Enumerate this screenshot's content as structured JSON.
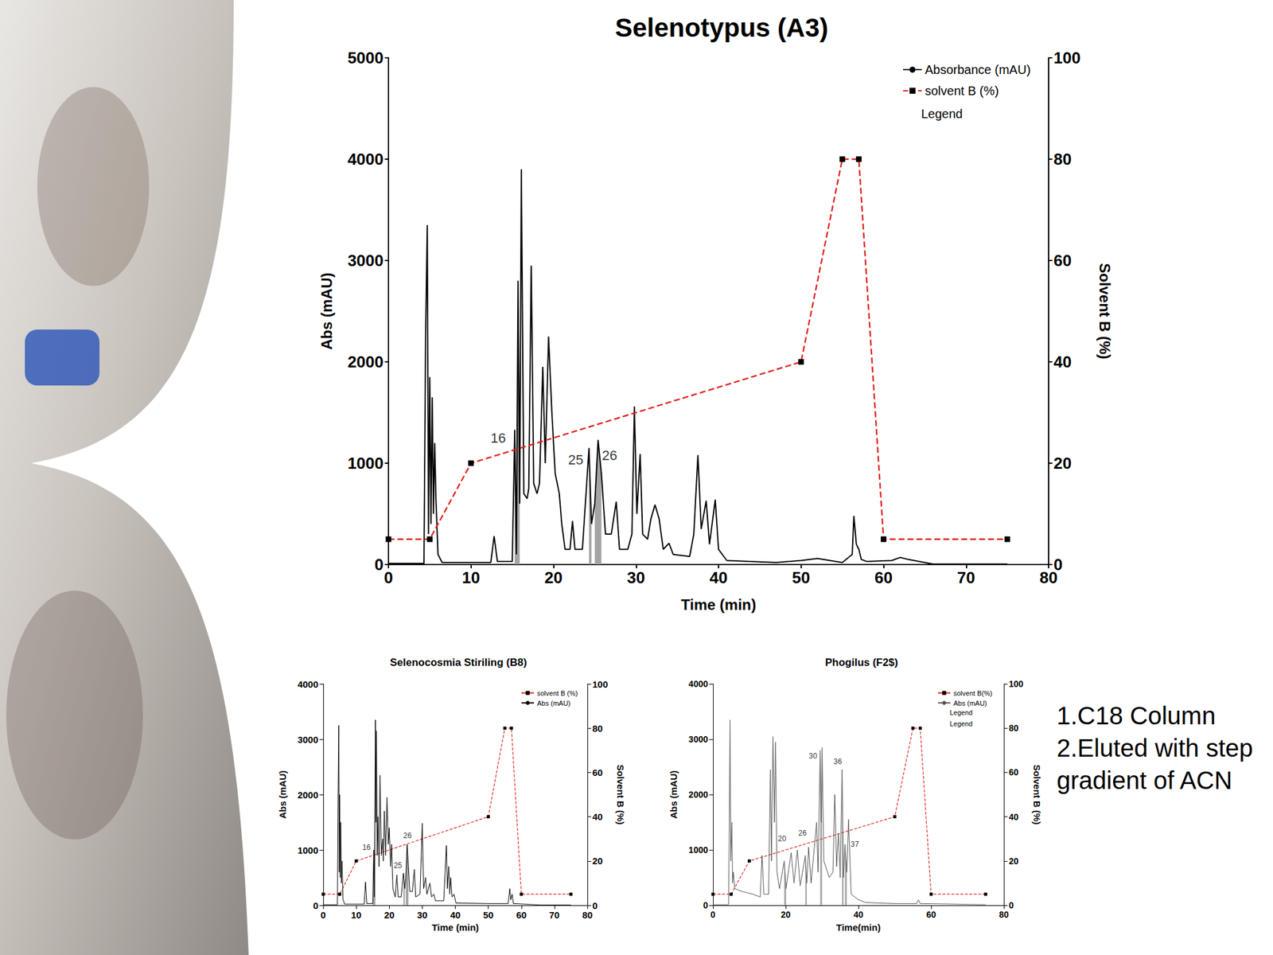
{
  "chart_data": [
    {
      "type": "line",
      "title": "Selenotypus (A3)",
      "x_label": "Time (min)",
      "y_label": "Abs (mAU)",
      "y2_label": "Solvent B (%)",
      "xlim": [
        0,
        80
      ],
      "xticks": [
        0,
        10,
        20,
        30,
        40,
        50,
        60,
        70,
        80
      ],
      "ylim": [
        0,
        5000
      ],
      "yticks": [
        0,
        1000,
        2000,
        3000,
        4000,
        5000
      ],
      "y2lim": [
        0,
        100
      ],
      "y2ticks": [
        0,
        20,
        40,
        60,
        80,
        100
      ],
      "grid": false,
      "legend": "top-right",
      "legend_notes": [
        "Legend"
      ],
      "series": [
        {
          "name": "Absorbance (mAU)",
          "color": "#000000",
          "line_style": "solid",
          "x": [
            0,
            4.3,
            4.5,
            4.7,
            4.85,
            5.0,
            5.15,
            5.3,
            5.45,
            5.6,
            5.75,
            6.0,
            6.5,
            12.4,
            12.8,
            13.2,
            15.0,
            15.3,
            15.5,
            15.7,
            15.9,
            16.1,
            16.4,
            16.8,
            17.0,
            17.3,
            17.6,
            18.0,
            18.3,
            18.7,
            19.0,
            19.4,
            19.8,
            20.2,
            20.7,
            21.0,
            21.4,
            22.0,
            22.3,
            22.6,
            23.5,
            24.3,
            24.6,
            25.0,
            25.4,
            25.8,
            26.3,
            27.0,
            27.6,
            28.0,
            29.0,
            29.5,
            29.8,
            30.1,
            30.5,
            30.8,
            31.4,
            31.8,
            32.3,
            32.8,
            33.3,
            34.0,
            34.5,
            36.5,
            37.0,
            37.5,
            37.9,
            38.5,
            38.9,
            39.6,
            40.0,
            41.0,
            47.0,
            50.0,
            52.0,
            55.0,
            56.2,
            56.4,
            56.7,
            57.0,
            57.3,
            58.0,
            61.0,
            62.0,
            63.0,
            66.0,
            75.0
          ],
          "values": [
            10,
            10,
            2250,
            3350,
            300,
            1850,
            400,
            1650,
            500,
            1200,
            650,
            100,
            20,
            20,
            280,
            30,
            30,
            1330,
            100,
            2800,
            600,
            3900,
            700,
            650,
            750,
            2950,
            800,
            700,
            800,
            1950,
            1000,
            2250,
            1500,
            900,
            700,
            400,
            150,
            150,
            430,
            150,
            150,
            1150,
            400,
            600,
            1230,
            900,
            300,
            300,
            620,
            150,
            150,
            300,
            1560,
            500,
            1090,
            300,
            250,
            450,
            590,
            450,
            150,
            210,
            100,
            80,
            300,
            1080,
            350,
            630,
            200,
            640,
            150,
            40,
            20,
            40,
            60,
            20,
            100,
            480,
            200,
            150,
            50,
            30,
            40,
            70,
            50,
            5,
            5
          ],
          "fractions": [
            [
              15.2,
              16.0
            ],
            [
              24.1,
              24.8
            ],
            [
              25.0,
              26.0
            ]
          ]
        },
        {
          "name": "solvent B (%)",
          "color": "#e0211d",
          "line_style": "dashed",
          "marker": "square",
          "axis": "y2",
          "x": [
            0,
            5,
            10,
            50,
            55,
            57,
            60,
            75
          ],
          "values": [
            5,
            5,
            20,
            40,
            80,
            80,
            5,
            5
          ]
        }
      ],
      "annotations": [
        {
          "text": "16",
          "x": 13.3,
          "y": 1250
        },
        {
          "text": "25",
          "x": 22.7,
          "y": 1034
        },
        {
          "text": "26",
          "x": 26.8,
          "y": 1074
        }
      ]
    },
    {
      "type": "line",
      "title": "Selenocosmia Stiriling (B8)",
      "x_label": "Time (min)",
      "y_label": "Abs (mAU)",
      "y2_label": "Solvent B (%)",
      "xlim": [
        0,
        80
      ],
      "xticks": [
        0,
        10,
        20,
        30,
        40,
        50,
        60,
        70,
        80
      ],
      "ylim": [
        0,
        4000
      ],
      "yticks": [
        0,
        1000,
        2000,
        3000,
        4000
      ],
      "y2lim": [
        0,
        100
      ],
      "y2ticks": [
        0,
        20,
        40,
        60,
        80,
        100
      ],
      "grid": false,
      "legend": "top-right",
      "series": [
        {
          "name": "solvent B (%)",
          "color": "#e0211d",
          "line_style": "dashed",
          "marker": "square",
          "axis": "y2",
          "x": [
            0,
            5,
            10,
            50,
            55,
            57,
            60,
            75
          ],
          "values": [
            5,
            5,
            20,
            40,
            80,
            80,
            5,
            5
          ]
        },
        {
          "name": "Abs (mAU)",
          "color": "#000000",
          "line_style": "solid",
          "x": [
            0,
            4.3,
            4.5,
            4.7,
            4.85,
            5.0,
            5.15,
            5.3,
            5.5,
            5.7,
            6.0,
            6.5,
            12.4,
            12.8,
            13.2,
            15.0,
            15.3,
            15.5,
            15.8,
            15.95,
            16.1,
            16.35,
            16.6,
            16.9,
            17.2,
            17.6,
            18.0,
            18.2,
            18.5,
            18.9,
            19.3,
            19.7,
            20.0,
            20.4,
            20.7,
            21.1,
            21.8,
            22.3,
            22.7,
            23.6,
            24.3,
            24.7,
            25.0,
            25.4,
            25.8,
            26.2,
            27.0,
            27.6,
            28.0,
            29.3,
            30.0,
            30.4,
            31.0,
            31.4,
            32.3,
            32.8,
            33.5,
            34.0,
            36.5,
            37.3,
            37.6,
            38.0,
            38.3,
            38.6,
            39.0,
            39.6,
            40.2,
            50.0,
            56.0,
            56.5,
            56.8,
            57.2,
            57.6,
            66.0,
            75.0
          ],
          "values": [
            10,
            10,
            2000,
            3250,
            600,
            2000,
            500,
            1500,
            400,
            800,
            100,
            20,
            20,
            420,
            30,
            30,
            1000,
            150,
            3350,
            1500,
            3150,
            900,
            1600,
            700,
            2350,
            900,
            1200,
            800,
            1700,
            900,
            1950,
            1100,
            1400,
            700,
            1100,
            300,
            150,
            550,
            150,
            150,
            580,
            300,
            500,
            1100,
            700,
            250,
            250,
            650,
            150,
            200,
            1480,
            300,
            500,
            200,
            400,
            150,
            200,
            80,
            80,
            1080,
            300,
            700,
            200,
            500,
            150,
            200,
            40,
            30,
            30,
            300,
            100,
            200,
            30,
            5,
            5
          ],
          "fractions": [
            [
              15.0,
              15.9
            ],
            [
              24.1,
              24.8
            ],
            [
              25.0,
              25.8
            ]
          ]
        }
      ],
      "annotations": [
        {
          "text": "16",
          "x": 13.1,
          "y": 1050
        },
        {
          "text": "25",
          "x": 22.6,
          "y": 716
        },
        {
          "text": "26",
          "x": 25.5,
          "y": 1260
        }
      ]
    },
    {
      "type": "line",
      "title": "Phogilus (F2$)",
      "x_label": "Time(min)",
      "y_label": "Abs (mAU)",
      "y2_label": "Solvent B (%)",
      "xlim": [
        0,
        80
      ],
      "xticks": [
        0,
        20,
        40,
        60,
        80
      ],
      "ylim": [
        0,
        4000
      ],
      "yticks": [
        0,
        1000,
        2000,
        3000,
        4000
      ],
      "y2lim": [
        0,
        100
      ],
      "y2ticks": [
        0,
        20,
        40,
        60,
        80,
        100
      ],
      "grid": false,
      "legend": "top-right",
      "legend_notes": [
        "Legend",
        "Legend"
      ],
      "series": [
        {
          "name": "solvent B(%)",
          "color": "#e0211d",
          "line_style": "dashed",
          "marker": "square",
          "axis": "y2",
          "x": [
            0,
            5,
            10,
            50,
            55,
            57,
            60,
            75
          ],
          "values": [
            5,
            5,
            20,
            40,
            80,
            80,
            5,
            5
          ]
        },
        {
          "name": "Abs (mAU)",
          "color": "#555555",
          "line_style": "solid",
          "x": [
            0,
            4.3,
            4.5,
            4.7,
            4.9,
            5.2,
            5.4,
            5.6,
            6.0,
            8.0,
            11.0,
            13.0,
            13.5,
            14.0,
            15.3,
            15.8,
            16.1,
            16.5,
            16.9,
            17.2,
            17.6,
            18.3,
            19.6,
            20.1,
            21.5,
            22.3,
            23.2,
            24.0,
            25.4,
            25.8,
            26.3,
            27.0,
            28.5,
            28.9,
            29.5,
            29.8,
            30.0,
            30.5,
            31.5,
            32.0,
            33.0,
            33.5,
            34.0,
            34.5,
            35.0,
            35.5,
            35.9,
            36.3,
            36.8,
            37.3,
            38.0,
            40.0,
            42.0,
            50.0,
            56.0,
            56.5,
            57.0,
            75.0
          ],
          "values": [
            10,
            10,
            1500,
            3350,
            800,
            1500,
            400,
            600,
            300,
            250,
            200,
            150,
            900,
            200,
            200,
            2450,
            800,
            3050,
            1500,
            2950,
            600,
            300,
            800,
            300,
            950,
            400,
            1000,
            350,
            900,
            400,
            1050,
            400,
            1500,
            600,
            2800,
            1500,
            2850,
            800,
            600,
            500,
            600,
            2000,
            700,
            1300,
            500,
            2450,
            500,
            1100,
            600,
            1550,
            200,
            100,
            50,
            30,
            30,
            100,
            30,
            10
          ],
          "fractions": [
            [
              19.2,
              20.2
            ],
            [
              25.1,
              25.9
            ],
            [
              29.0,
              30.3
            ],
            [
              35.2,
              35.95
            ],
            [
              36.1,
              36.9
            ]
          ]
        }
      ],
      "annotations": [
        {
          "text": "20",
          "x": 19.0,
          "y": 1200
        },
        {
          "text": "26",
          "x": 24.6,
          "y": 1300
        },
        {
          "text": "30",
          "x": 27.5,
          "y": 2700
        },
        {
          "text": "36",
          "x": 34.3,
          "y": 2600
        },
        {
          "text": "37",
          "x": 39.0,
          "y": 1100
        }
      ]
    }
  ],
  "side_notes": [
    "1.C18 Column",
    "2.Eluted with step gradient of ACN"
  ]
}
